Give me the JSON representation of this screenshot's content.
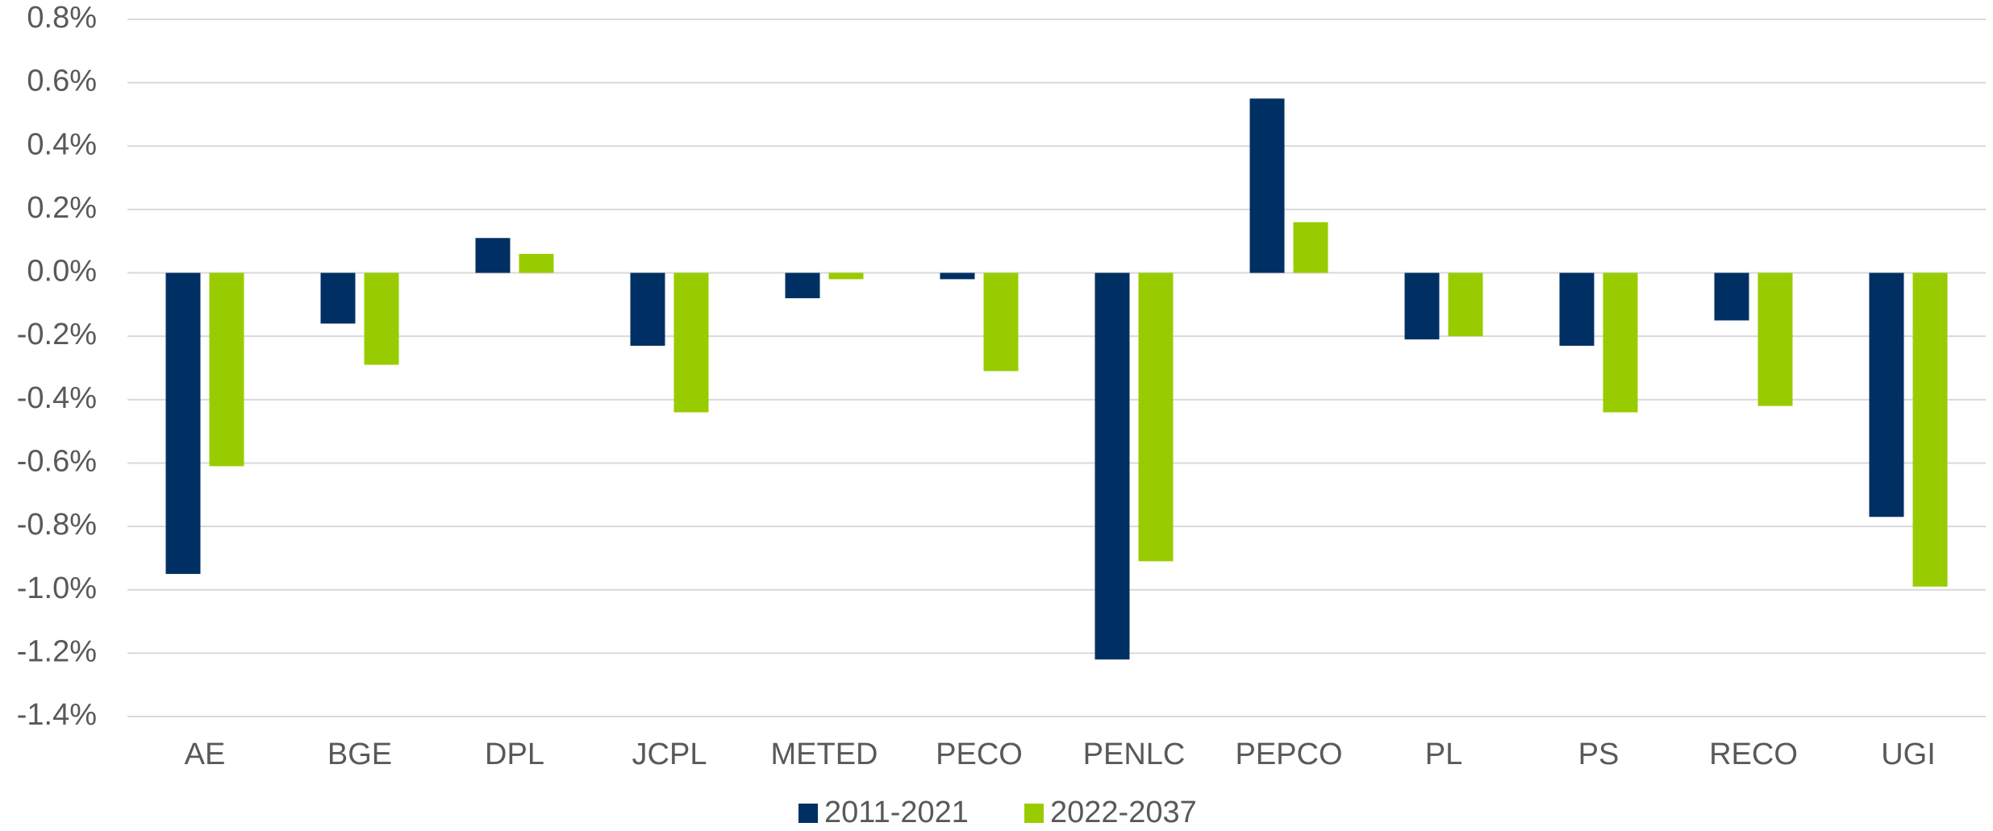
{
  "chart_data": {
    "type": "bar",
    "categories": [
      "AE",
      "BGE",
      "DPL",
      "JCPL",
      "METED",
      "PECO",
      "PENLC",
      "PEPCO",
      "PL",
      "PS",
      "RECO",
      "UGI"
    ],
    "series": [
      {
        "name": "2011-2021",
        "color": "#003063",
        "values": [
          -0.95,
          -0.16,
          0.11,
          -0.23,
          -0.08,
          -0.02,
          -1.22,
          0.55,
          -0.21,
          -0.23,
          -0.15,
          -0.77
        ]
      },
      {
        "name": "2022-2037",
        "color": "#99cc00",
        "values": [
          -0.61,
          -0.29,
          0.06,
          -0.44,
          -0.02,
          -0.31,
          -0.91,
          0.16,
          -0.2,
          -0.44,
          -0.42,
          -0.99
        ]
      }
    ],
    "ylim": [
      -1.4,
      0.8
    ],
    "yticks": [
      {
        "value": 0.8,
        "label": "0.8%"
      },
      {
        "value": 0.6,
        "label": "0.6%"
      },
      {
        "value": 0.4,
        "label": "0.4%"
      },
      {
        "value": 0.2,
        "label": "0.2%"
      },
      {
        "value": 0,
        "label": "0.0%"
      },
      {
        "value": -0.2,
        "label": "-0.2%"
      },
      {
        "value": -0.4,
        "label": "-0.4%"
      },
      {
        "value": -0.6,
        "label": "-0.6%"
      },
      {
        "value": -0.8,
        "label": "-0.8%"
      },
      {
        "value": -1.0,
        "label": "-1.0%"
      },
      {
        "value": -1.2,
        "label": "-1.2%"
      },
      {
        "value": -1.4,
        "label": "-1.4%"
      }
    ],
    "grid": true,
    "legend": "bottom"
  }
}
